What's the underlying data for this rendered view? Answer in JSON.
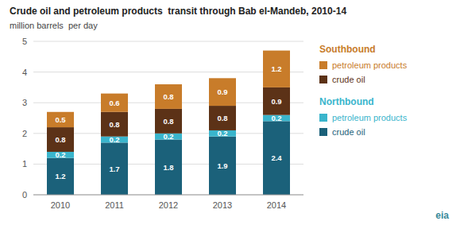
{
  "chart_data": {
    "type": "bar",
    "stacked": true,
    "data_labels": true,
    "grid": true,
    "title": "Crude oil and petroleum products  transit through Bab el-Mandeb, 2010-14",
    "subtitle": "million barrels  per day",
    "categories": [
      "2010",
      "2011",
      "2012",
      "2013",
      "2014"
    ],
    "series": [
      {
        "name": "crude oil",
        "group": "Northbound",
        "color": "#1b617a",
        "values": [
          1.2,
          1.7,
          1.8,
          1.9,
          2.4
        ]
      },
      {
        "name": "petroleum products",
        "group": "Northbound",
        "color": "#3ab5cc",
        "values": [
          0.2,
          0.2,
          0.2,
          0.2,
          0.2
        ]
      },
      {
        "name": "crude oil",
        "group": "Southbound",
        "color": "#5c3217",
        "values": [
          0.8,
          0.8,
          0.8,
          0.8,
          0.9
        ]
      },
      {
        "name": "petroleum products",
        "group": "Southbound",
        "color": "#c87c2a",
        "values": [
          0.5,
          0.6,
          0.8,
          0.9,
          1.2
        ]
      }
    ],
    "ylim": [
      0,
      5
    ],
    "yticks": [
      0,
      1,
      2,
      3,
      4,
      5
    ],
    "annotations": [
      "eia"
    ]
  }
}
